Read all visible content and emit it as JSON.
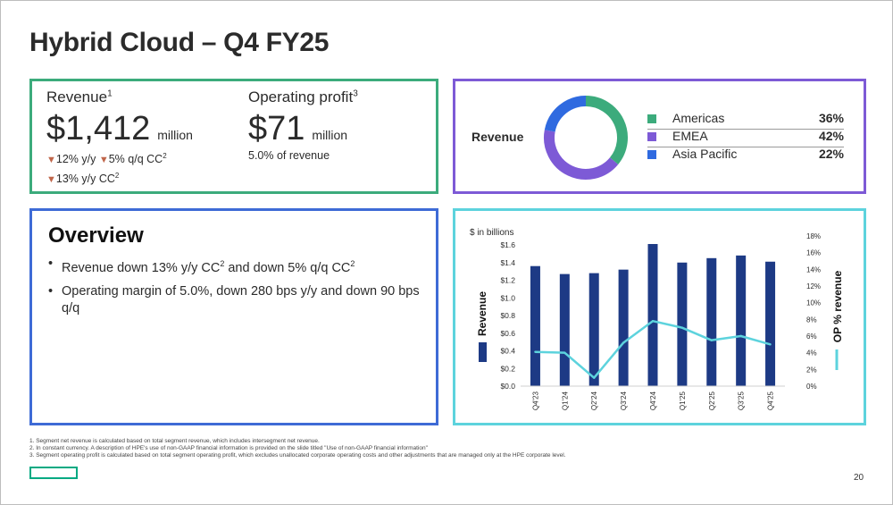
{
  "title": "Hybrid Cloud – Q4 FY25",
  "revenue": {
    "label": "Revenue",
    "sup": "1",
    "value": "$1,412",
    "unit": "million",
    "line1a": "12% y/y",
    "line1b": "5% q/q CC",
    "line1b_sup": "2",
    "line2": "13% y/y CC",
    "line2_sup": "2"
  },
  "op_profit": {
    "label": "Operating profit",
    "sup": "3",
    "value": "$71",
    "unit": "million",
    "line": "5.0% of revenue"
  },
  "geo": {
    "label": "Revenue",
    "items": [
      {
        "name": "Americas",
        "pct": "36%",
        "color": "#3cab7c"
      },
      {
        "name": "EMEA",
        "pct": "42%",
        "color": "#7d5ad6"
      },
      {
        "name": "Asia Pacific",
        "pct": "22%",
        "color": "#2f6ae0"
      }
    ]
  },
  "overview": {
    "title": "Overview",
    "b1_a": "Revenue down 13% y/y CC",
    "b1_sup1": "2",
    "b1_b": " and down 5% q/q CC",
    "b1_sup2": "2",
    "b2": "Operating margin of 5.0%, down 280 bps y/y and down 90 bps q/q"
  },
  "chart_data": {
    "type": "bar",
    "title": "",
    "unit_label": "$ in billions",
    "categories": [
      "Q4'23",
      "Q1'24",
      "Q2'24",
      "Q3'24",
      "Q4'24",
      "Q1'25",
      "Q2'25",
      "Q3'25",
      "Q4'25"
    ],
    "series": [
      {
        "name": "Revenue",
        "type": "bar",
        "axis": "left",
        "color": "#1d3a85",
        "values": [
          1.36,
          1.27,
          1.28,
          1.32,
          1.61,
          1.4,
          1.45,
          1.48,
          1.41
        ]
      },
      {
        "name": "OP % revenue",
        "type": "line",
        "axis": "right",
        "color": "#5dd3dd",
        "values": [
          4.1,
          4.0,
          1.0,
          5.2,
          7.8,
          7.0,
          5.5,
          6.0,
          5.0
        ]
      }
    ],
    "ylim_left": [
      0,
      1.6
    ],
    "yticks_left": [
      "$0.0",
      "$0.2",
      "$0.4",
      "$0.6",
      "$0.8",
      "$1.0",
      "$1.2",
      "$1.4",
      "$1.6"
    ],
    "ylim_right": [
      0,
      18
    ],
    "yticks_right": [
      "0%",
      "2%",
      "4%",
      "6%",
      "8%",
      "10%",
      "12%",
      "14%",
      "16%",
      "18%"
    ],
    "legend_left": "Revenue",
    "legend_right": "OP % revenue"
  },
  "footnotes": [
    "1. Segment net revenue is calculated based on total segment revenue, which includes intersegment net revenue.",
    "2. In constant currency. A description of HPE's use of non-GAAP financial information is provided on the slide titled \"Use of non-GAAP financial information\"",
    "3. Segment operating profit is calculated based on total segment operating profit, which excludes unallocated corporate operating costs and other adjustments that are managed only at the HPE corporate level."
  ],
  "page_number": "20"
}
